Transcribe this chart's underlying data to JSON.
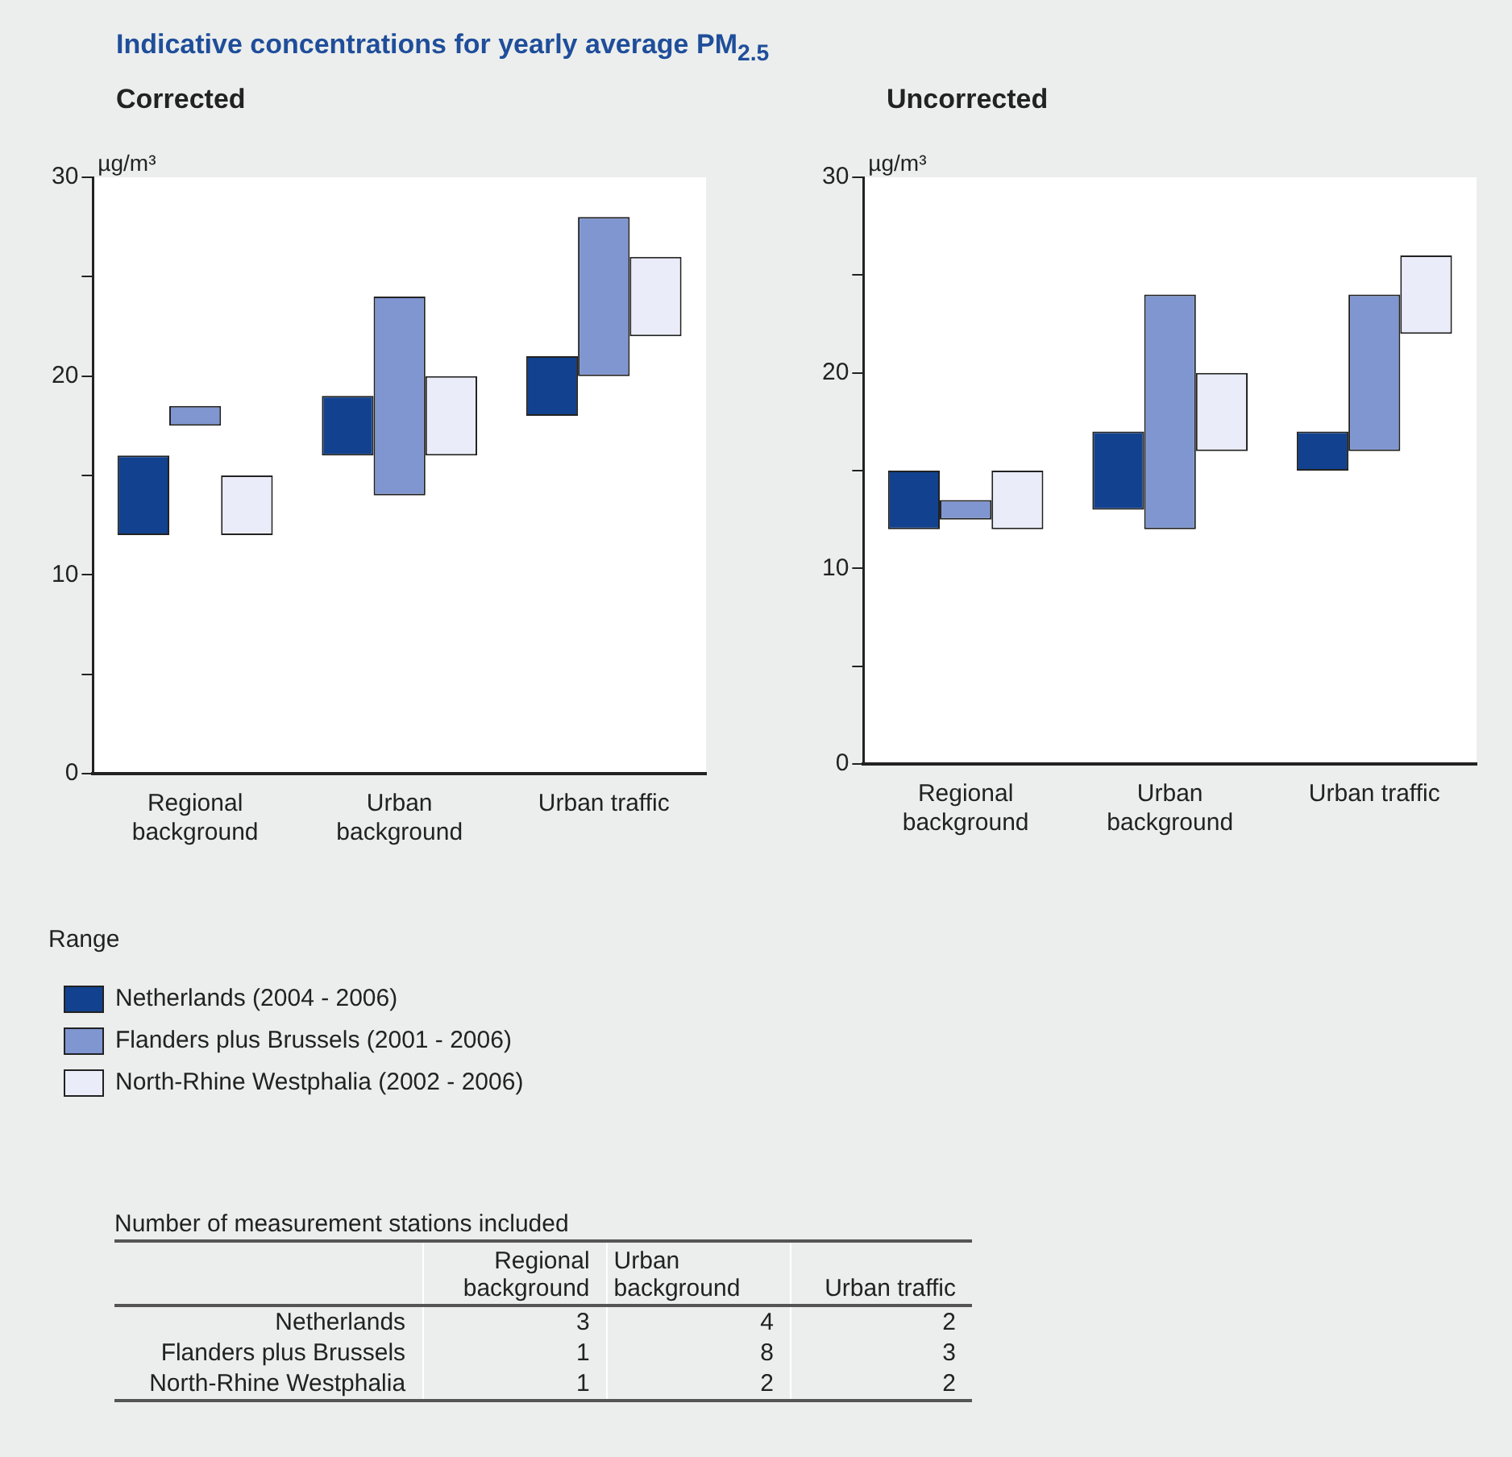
{
  "chart_data": [
    {
      "type": "bar",
      "title": "Indicative concentrations for yearly average PM$_{2.5}$",
      "subtitle": "Corrected",
      "ylabel": "µg/m³",
      "categories": [
        "Regional background",
        "Urban background",
        "Urban traffic"
      ],
      "series": [
        {
          "name": "Netherlands (2004 - 2006)",
          "color": "#12428f",
          "base": [
            12,
            16,
            18
          ],
          "values": [
            4,
            3,
            3
          ]
        },
        {
          "name": "Flanders plus Brussels (2001 - 2006)",
          "color": "#7f96d0",
          "base": [
            17.5,
            14,
            20
          ],
          "values": [
            1,
            10,
            8
          ]
        },
        {
          "name": "North-Rhine Westphalia (2002 - 2006)",
          "color": "#eaedf9",
          "base": [
            12,
            16,
            22
          ],
          "values": [
            3,
            4,
            4
          ]
        }
      ],
      "ylim": [
        0,
        30
      ],
      "yticks": [
        0,
        {
          "value": 5,
          "label": null
        },
        10,
        {
          "value": 15,
          "label": null
        },
        20,
        {
          "value": 25,
          "label": null
        },
        30
      ],
      "legend": "bottom",
      "legend_title": "Range"
    },
    {
      "type": "bar",
      "subtitle": "Uncorrected",
      "ylabel": "µg/m³",
      "categories": [
        "Regional background",
        "Urban background",
        "Urban traffic"
      ],
      "series": [
        {
          "color": "#12428f",
          "base": [
            12,
            13,
            15
          ],
          "values": [
            3,
            4,
            2
          ]
        },
        {
          "color": "#7f96d0",
          "base": [
            12.5,
            12,
            16
          ],
          "values": [
            1,
            12,
            8
          ]
        },
        {
          "color": "#eaedf9",
          "base": [
            12,
            16,
            22
          ],
          "values": [
            3,
            4,
            4
          ]
        }
      ],
      "ylim": [
        0,
        30
      ],
      "yticks": [
        0,
        {
          "value": 5,
          "label": null
        },
        10,
        {
          "value": 15,
          "label": null
        },
        20,
        {
          "value": 25,
          "label": null
        },
        30
      ]
    },
    {
      "type": "heatmap",
      "title": "Number of measurement stations included",
      "categories": [
        "Regional background",
        "Urban background",
        "Urban traffic"
      ],
      "y_categories": [
        "Netherlands",
        "Flanders plus Brussels",
        "North-Rhine Westphalia"
      ],
      "cells": [
        [
          3,
          4,
          2
        ],
        [
          1,
          8,
          3
        ],
        [
          1,
          2,
          2
        ]
      ],
      "data_labels": true
    }
  ]
}
